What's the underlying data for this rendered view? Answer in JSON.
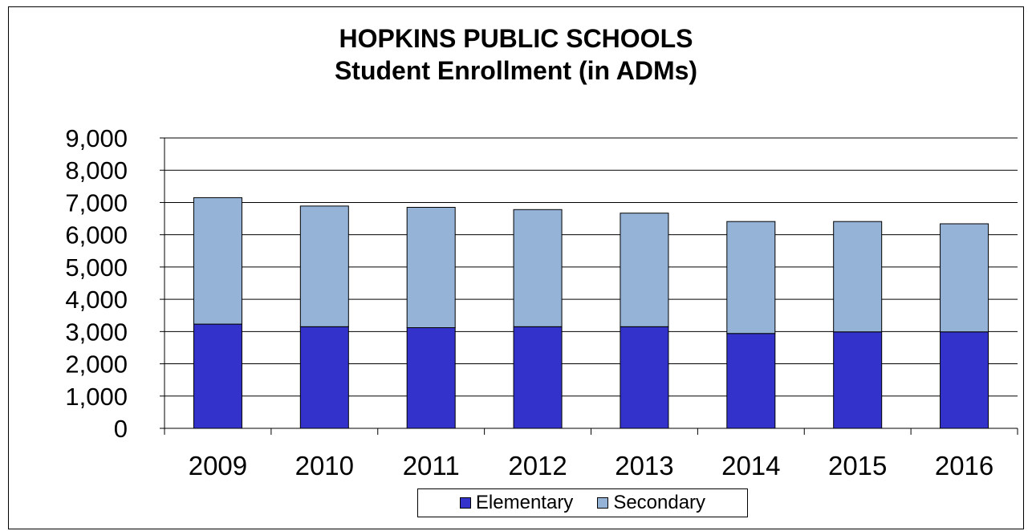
{
  "chart_data": {
    "type": "bar",
    "stacked": true,
    "title": "HOPKINS PUBLIC SCHOOLS",
    "subtitle": "Student Enrollment (in ADMs)",
    "xlabel": "",
    "ylabel": "",
    "categories": [
      "2009",
      "2010",
      "2011",
      "2012",
      "2013",
      "2014",
      "2015",
      "2016"
    ],
    "series": [
      {
        "name": "Elementary",
        "color": "#3333cc",
        "values": [
          3230,
          3150,
          3120,
          3150,
          3150,
          2940,
          2990,
          2990
        ]
      },
      {
        "name": "Secondary",
        "color": "#95b3d7",
        "values": [
          3920,
          3740,
          3730,
          3630,
          3520,
          3470,
          3420,
          3350
        ]
      }
    ],
    "ylim": [
      0,
      9000
    ],
    "yticks": [
      "0",
      "1,000",
      "2,000",
      "3,000",
      "4,000",
      "5,000",
      "6,000",
      "7,000",
      "8,000",
      "9,000"
    ],
    "grid": true,
    "legend_position": "bottom"
  }
}
